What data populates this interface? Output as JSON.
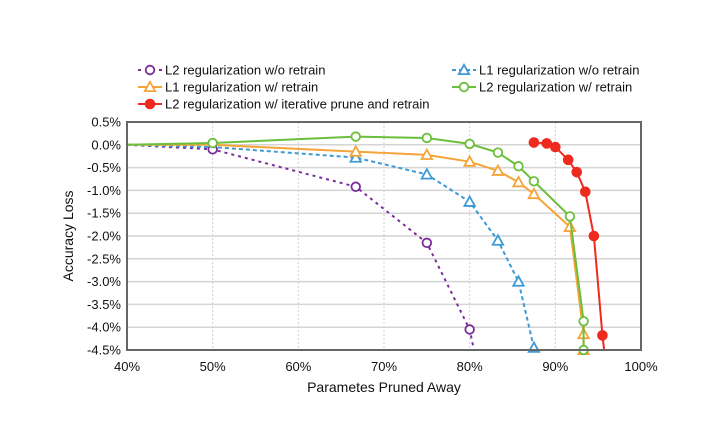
{
  "chart_data": {
    "type": "line",
    "title": "",
    "xlabel": "Parametes Pruned Away",
    "ylabel": "Accuracy Loss",
    "xlim": [
      40,
      100
    ],
    "ylim": [
      -4.5,
      0.5
    ],
    "xticks": [
      "40%",
      "50%",
      "60%",
      "70%",
      "80%",
      "90%",
      "100%"
    ],
    "xtick_values": [
      40,
      50,
      60,
      70,
      80,
      90,
      100
    ],
    "yticks": [
      "0.5%",
      "0.0%",
      "-0.5%",
      "-1.0%",
      "-1.5%",
      "-2.0%",
      "-2.5%",
      "-3.0%",
      "-3.5%",
      "-4.0%",
      "-4.5%"
    ],
    "ytick_values": [
      0.5,
      0.0,
      -0.5,
      -1.0,
      -1.5,
      -2.0,
      -2.5,
      -3.0,
      -3.5,
      -4.0,
      -4.5
    ],
    "grid": "horizontal solid, vertical dotted",
    "legend_placement": "top",
    "series": [
      {
        "name": "L2 regularization w/o retrain",
        "color": "#7b2d9c",
        "marker": "circle-open",
        "dash": "dotted",
        "x": [
          40,
          50,
          66.7,
          75,
          80,
          80.5
        ],
        "y": [
          0.0,
          -0.1,
          -0.92,
          -2.15,
          -4.05,
          -4.5
        ],
        "markers_at": [
          50,
          66.7,
          75,
          80
        ]
      },
      {
        "name": "L1 regularization w/o retrain",
        "color": "#3d9ad6",
        "marker": "triangle-open",
        "dash": "dashed",
        "x": [
          40,
          50,
          66.7,
          75,
          80,
          83.3,
          85.7,
          87.5
        ],
        "y": [
          0.0,
          -0.05,
          -0.28,
          -0.65,
          -1.25,
          -2.1,
          -3.0,
          -4.45
        ],
        "markers_at": [
          66.7,
          75,
          80,
          83.3,
          85.7,
          87.5
        ]
      },
      {
        "name": "L1 regularization w/ retrain",
        "color": "#f5a43a",
        "marker": "triangle-open",
        "dash": "solid",
        "x": [
          40,
          50,
          66.7,
          75,
          80,
          83.3,
          85.7,
          87.5,
          91.7,
          93.3,
          93.3
        ],
        "y": [
          0.0,
          0.0,
          -0.15,
          -0.22,
          -0.37,
          -0.57,
          -0.82,
          -1.08,
          -1.8,
          -4.15,
          -4.5
        ],
        "markers_at": [
          66.7,
          75,
          80,
          83.3,
          85.7,
          87.5,
          91.7,
          93.3
        ]
      },
      {
        "name": "L2 regularization w/ retrain",
        "color": "#6cbf3c",
        "marker": "circle-open",
        "dash": "solid",
        "x": [
          40,
          50,
          66.7,
          75,
          80,
          83.3,
          85.7,
          87.5,
          91.7,
          93.3,
          93.3
        ],
        "y": [
          0.0,
          0.04,
          0.18,
          0.15,
          0.02,
          -0.17,
          -0.47,
          -0.8,
          -1.57,
          -3.87,
          -4.5
        ],
        "markers_at": [
          50,
          66.7,
          75,
          80,
          83.3,
          85.7,
          87.5,
          91.7,
          93.3
        ]
      },
      {
        "name": "L2 regularization w/ iterative prune and retrain",
        "color": "#ee2a1e",
        "marker": "circle-filled",
        "dash": "solid",
        "x": [
          87.5,
          89,
          90,
          91.5,
          92.5,
          93.5,
          94.5,
          95.5,
          95.7
        ],
        "y": [
          0.05,
          0.03,
          -0.05,
          -0.33,
          -0.6,
          -1.03,
          -2.0,
          -4.18,
          -4.5
        ],
        "markers_at": [
          87.5,
          89,
          90,
          91.5,
          92.5,
          93.5,
          94.5,
          95.5
        ]
      }
    ],
    "legend": [
      "L2 regularization w/o retrain",
      "L1 regularization w/ retrain",
      "L2 regularization w/ iterative prune and retrain",
      "L1 regularization w/o retrain",
      "L2 regularization w/ retrain"
    ]
  }
}
